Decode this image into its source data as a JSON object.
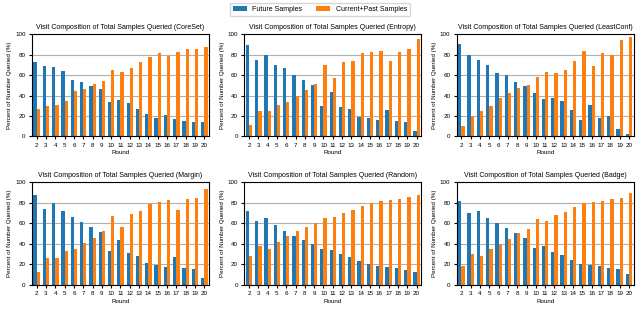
{
  "chart_data": [
    {
      "type": "bar",
      "title": "Visit Composition of Total Samples Queried (CoreSet)",
      "x_label": "Round",
      "y_label": "Percent of Number Queried (%)",
      "categories": [
        "2",
        "3",
        "4",
        "5",
        "6",
        "7",
        "8",
        "9",
        "10",
        "11",
        "12",
        "13",
        "14",
        "15",
        "16",
        "17",
        "18",
        "19",
        "20"
      ],
      "series": [
        {
          "name": "Future Samples",
          "values": [
            73,
            69,
            68,
            64,
            55,
            53,
            49,
            46,
            34,
            36,
            33,
            27,
            22,
            18,
            21,
            17,
            15,
            14,
            14
          ]
        },
        {
          "name": "Current+Past Samples",
          "values": [
            27,
            30,
            31,
            35,
            44,
            46,
            51,
            54,
            65,
            63,
            67,
            73,
            78,
            82,
            79,
            83,
            86,
            86,
            87
          ]
        }
      ],
      "ylim": [
        0,
        100
      ],
      "yticks": [
        0,
        20,
        40,
        60,
        80,
        100
      ],
      "grid": true
    },
    {
      "type": "bar",
      "title": "Visit Composition of Total Samples Queried (Entropy)",
      "x_label": "Round",
      "y_label": "Percent of Number Queried (%)",
      "categories": [
        "2",
        "3",
        "4",
        "5",
        "6",
        "7",
        "8",
        "9",
        "10",
        "11",
        "12",
        "13",
        "14",
        "15",
        "16",
        "17",
        "18",
        "19",
        "20"
      ],
      "series": [
        {
          "name": "Future Samples",
          "values": [
            89,
            75,
            80,
            70,
            67,
            60,
            55,
            50,
            30,
            43,
            29,
            27,
            19,
            18,
            16,
            26,
            15,
            14,
            5
          ]
        },
        {
          "name": "Current+Past Samples",
          "values": [
            11,
            25,
            25,
            31,
            34,
            40,
            45,
            51,
            70,
            57,
            73,
            74,
            82,
            83,
            84,
            74,
            83,
            86,
            95
          ]
        }
      ],
      "ylim": [
        0,
        100
      ],
      "yticks": [
        0,
        20,
        40,
        60,
        80,
        100
      ],
      "grid": true
    },
    {
      "type": "bar",
      "title": "Visit Composition of Total Samples Queried (LeastConf)",
      "x_label": "Round",
      "y_label": "Percent of Number Queried (%)",
      "categories": [
        "2",
        "3",
        "4",
        "5",
        "6",
        "7",
        "8",
        "9",
        "10",
        "11",
        "12",
        "13",
        "14",
        "15",
        "16",
        "17",
        "18",
        "19",
        "20"
      ],
      "series": [
        {
          "name": "Future Samples",
          "values": [
            90,
            80,
            75,
            70,
            62,
            60,
            53,
            49,
            42,
            37,
            38,
            35,
            26,
            16,
            31,
            18,
            20,
            7,
            2
          ]
        },
        {
          "name": "Current+Past Samples",
          "values": [
            10,
            20,
            25,
            30,
            38,
            42,
            47,
            50,
            58,
            63,
            62,
            65,
            74,
            84,
            69,
            82,
            80,
            94,
            97
          ]
        }
      ],
      "ylim": [
        0,
        100
      ],
      "yticks": [
        0,
        20,
        40,
        60,
        80,
        100
      ],
      "grid": true
    },
    {
      "type": "bar",
      "title": "Visit Composition of Total Samples Queried (Margin)",
      "x_label": "Round",
      "y_label": "Percent of Number Queried (%)",
      "categories": [
        "2",
        "3",
        "4",
        "5",
        "6",
        "7",
        "8",
        "9",
        "10",
        "11",
        "12",
        "13",
        "14",
        "15",
        "16",
        "17",
        "18",
        "19",
        "20"
      ],
      "series": [
        {
          "name": "Future Samples",
          "values": [
            88,
            74,
            80,
            72,
            66,
            61,
            56,
            51,
            33,
            44,
            31,
            28,
            21,
            19,
            17,
            27,
            16,
            15,
            6
          ]
        },
        {
          "name": "Current+Past Samples",
          "values": [
            12,
            26,
            26,
            33,
            35,
            41,
            46,
            52,
            67,
            56,
            69,
            72,
            79,
            81,
            83,
            73,
            84,
            85,
            94
          ]
        }
      ],
      "ylim": [
        0,
        100
      ],
      "yticks": [
        0,
        20,
        40,
        60,
        80,
        100
      ],
      "grid": true
    },
    {
      "type": "bar",
      "title": "Visit Composition of Total Samples Queried (Random)",
      "x_label": "Round",
      "y_label": "Percent of Number Queried (%)",
      "categories": [
        "2",
        "3",
        "4",
        "5",
        "6",
        "7",
        "8",
        "9",
        "10",
        "11",
        "12",
        "13",
        "14",
        "15",
        "16",
        "17",
        "18",
        "19",
        "20"
      ],
      "series": [
        {
          "name": "Future Samples",
          "values": [
            72,
            62,
            65,
            58,
            52,
            48,
            44,
            40,
            35,
            34,
            30,
            27,
            23,
            20,
            18,
            17,
            16,
            14,
            12
          ]
        },
        {
          "name": "Current+Past Samples",
          "values": [
            28,
            38,
            35,
            42,
            48,
            52,
            56,
            60,
            65,
            66,
            70,
            73,
            77,
            80,
            82,
            83,
            84,
            86,
            88
          ]
        }
      ],
      "ylim": [
        0,
        100
      ],
      "yticks": [
        0,
        20,
        40,
        60,
        80,
        100
      ],
      "grid": true
    },
    {
      "type": "bar",
      "title": "Visit Composition of Total Samples Queried (Badge)",
      "x_label": "Round",
      "y_label": "Percent of Number Queried (%)",
      "categories": [
        "2",
        "3",
        "4",
        "5",
        "6",
        "7",
        "8",
        "9",
        "10",
        "11",
        "12",
        "13",
        "14",
        "15",
        "16",
        "17",
        "18",
        "19",
        "20"
      ],
      "series": [
        {
          "name": "Future Samples",
          "values": [
            82,
            70,
            72,
            65,
            60,
            55,
            50,
            46,
            36,
            38,
            32,
            29,
            24,
            20,
            19,
            18,
            16,
            15,
            10
          ]
        },
        {
          "name": "Current+Past Samples",
          "values": [
            18,
            30,
            28,
            35,
            40,
            45,
            50,
            54,
            64,
            62,
            68,
            71,
            76,
            80,
            81,
            82,
            84,
            85,
            90
          ]
        }
      ],
      "ylim": [
        0,
        100
      ],
      "yticks": [
        0,
        20,
        40,
        60,
        80,
        100
      ],
      "grid": true
    }
  ]
}
